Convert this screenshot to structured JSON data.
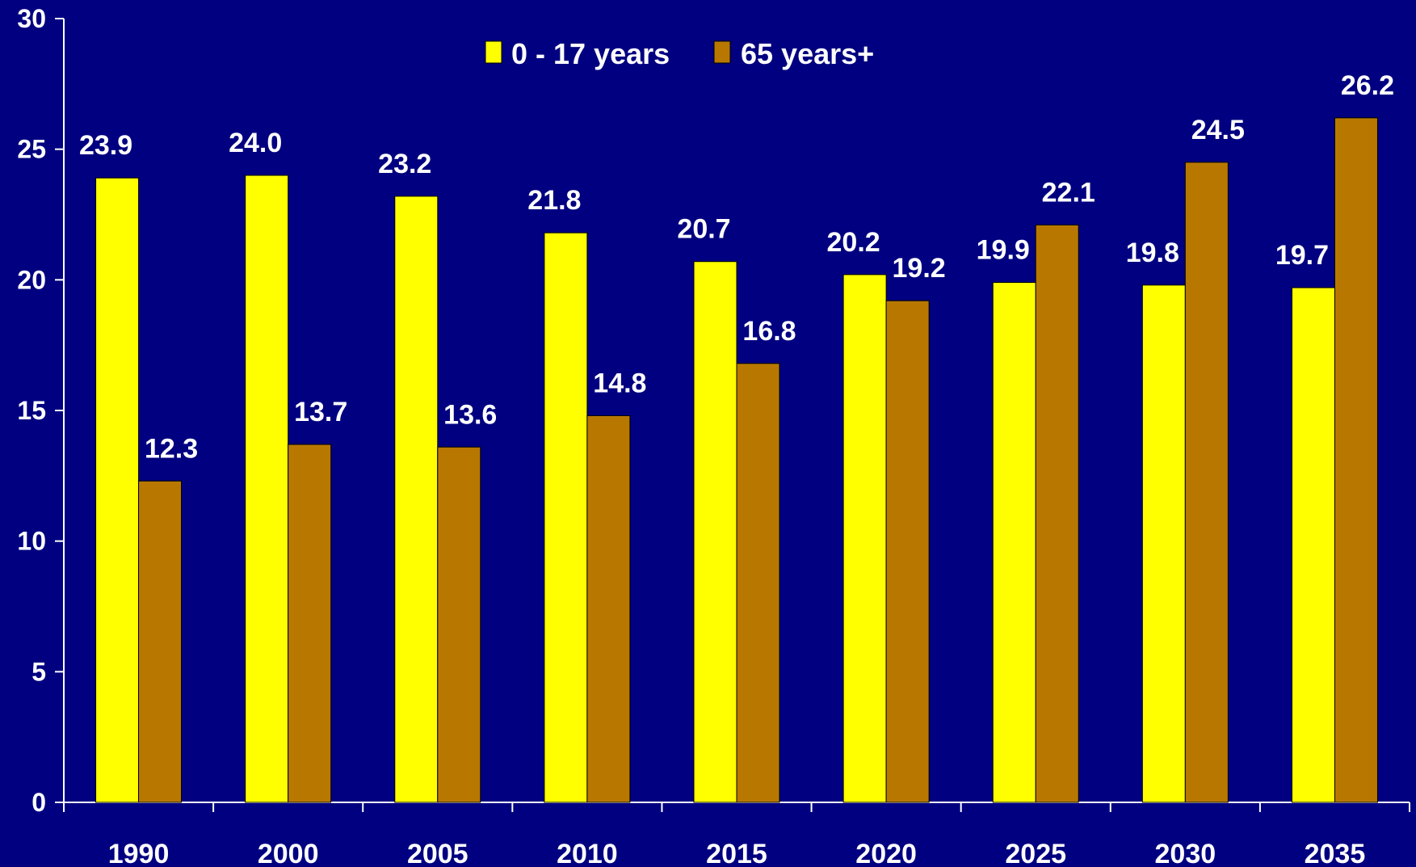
{
  "chart_data": {
    "type": "bar",
    "categories": [
      "1990",
      "2000",
      "2005",
      "2010",
      "2015",
      "2020",
      "2025",
      "2030",
      "2035"
    ],
    "series": [
      {
        "name": "0 - 17 years",
        "color": "#ffff00",
        "values": [
          23.9,
          24.0,
          23.2,
          21.8,
          20.7,
          20.2,
          19.9,
          19.8,
          19.7
        ]
      },
      {
        "name": "65 years+",
        "color": "#b87800",
        "values": [
          12.3,
          13.7,
          13.6,
          14.8,
          16.8,
          19.2,
          22.1,
          24.5,
          26.2
        ]
      }
    ],
    "data_labels": [
      [
        "23.9",
        "24.0",
        "23.2",
        "21.8",
        "20.7",
        "20.2",
        "19.9",
        "19.8",
        "19.7"
      ],
      [
        "12.3",
        "13.7",
        "13.6",
        "14.8",
        "16.8",
        "19.2",
        "22.1",
        "24.5",
        "26.2"
      ]
    ],
    "yticks": [
      "0",
      "5",
      "10",
      "15",
      "20",
      "25",
      "30"
    ],
    "ylim": [
      0,
      30
    ],
    "title": "",
    "xlabel": "",
    "ylabel": "",
    "legend_position": "top-center",
    "grid": false,
    "background_color": "#000080",
    "axis_color": "#ffffff"
  }
}
